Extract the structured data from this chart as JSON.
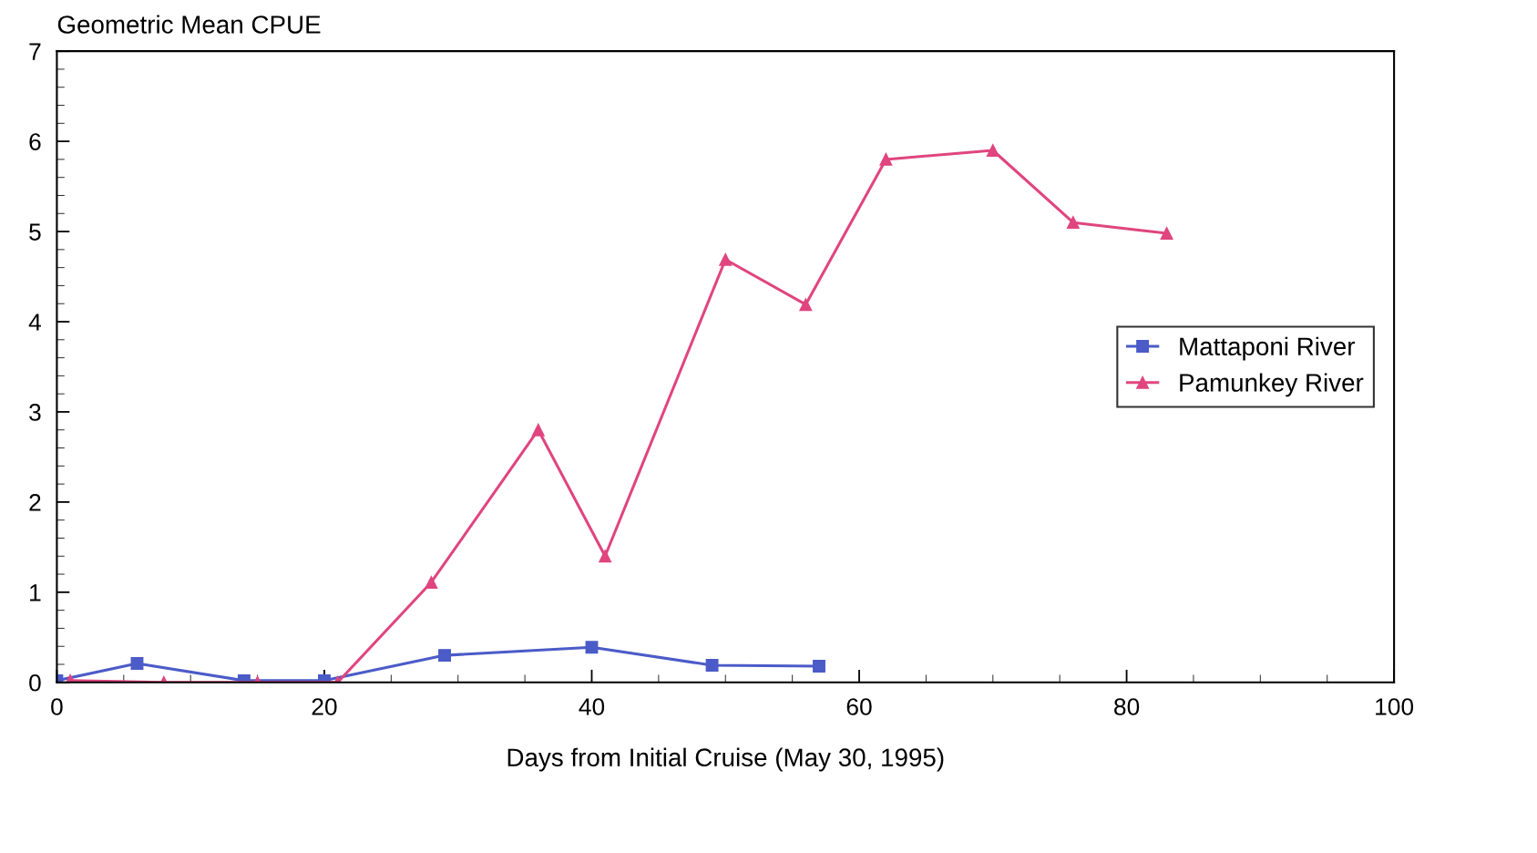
{
  "chart_data": {
    "type": "line",
    "ylabel": "Geometric Mean CPUE",
    "xlabel": "Days from Initial Cruise (May 30, 1995)",
    "xlim": [
      0,
      100
    ],
    "xticks": [
      0,
      20,
      40,
      60,
      80,
      100
    ],
    "ylim": [
      0,
      7
    ],
    "yticks": [
      0,
      1,
      2,
      3,
      4,
      5,
      6,
      7
    ],
    "grid": false,
    "legend": "center right",
    "series": [
      {
        "name": "Mattaponi River",
        "color": "#4b5bc8",
        "marker": "square",
        "x": [
          0,
          6,
          14,
          20,
          29,
          40,
          49,
          57
        ],
        "values": [
          0.02,
          0.21,
          0.02,
          0.02,
          0.3,
          0.39,
          0.19,
          0.18
        ]
      },
      {
        "name": "Pamunkey River",
        "color": "#e0457f",
        "marker": "triangle",
        "x": [
          1,
          8,
          15,
          21,
          28,
          36,
          41,
          50,
          56,
          62,
          70,
          76,
          83
        ],
        "values": [
          0.02,
          0.0,
          0.0,
          0.0,
          1.11,
          2.8,
          1.4,
          4.69,
          4.19,
          5.8,
          5.9,
          5.1,
          4.98
        ]
      }
    ]
  }
}
